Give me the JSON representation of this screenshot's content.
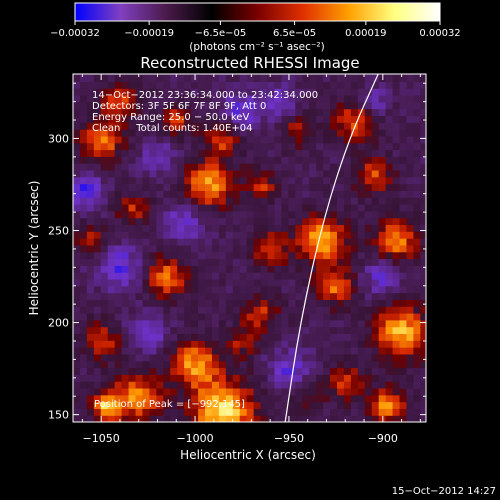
{
  "chart_data": {
    "type": "heatmap",
    "title": "Reconstructed RHESSI Image",
    "xlabel": "Heliocentric X (arcsec)",
    "ylabel": "Heliocentric Y (arcsec)",
    "xlim": [
      -1065,
      -877
    ],
    "ylim": [
      146,
      335
    ],
    "xticks": [
      -1050,
      -1000,
      -950,
      -900
    ],
    "xtick_labels": [
      "−1050",
      "−1000",
      "−950",
      "−900"
    ],
    "yticks": [
      150,
      200,
      250,
      300
    ],
    "ytick_labels": [
      "150",
      "200",
      "250",
      "300"
    ],
    "colorbar": {
      "range": [
        -0.00032,
        0.00032
      ],
      "ticks": [
        -0.00032,
        -0.00019,
        -6.5e-05,
        6.5e-05,
        0.00019,
        0.00032
      ],
      "tick_labels": [
        "−0.00032",
        "−0.00019",
        "−6.5e−05",
        "6.5e−05",
        "0.00019",
        "0.00032"
      ],
      "unit_label": "(photons cm⁻² s⁻¹ asec⁻²)",
      "colors": [
        "#0000ff",
        "#8040c0",
        "#4a1a4a",
        "#000000",
        "#7a0000",
        "#e03000",
        "#ffa000",
        "#ffff80",
        "#ffffff"
      ]
    },
    "info_lines": [
      "14−Oct−2012 23:36:34.000 to 23:42:34.000",
      "Detectors: 3F 5F 6F 7F 8F 9F, Att 0",
      "Energy Range: 25.0 − 50.0 keV",
      "Clean     Total counts: 1.40E+04"
    ],
    "peak_label": "Position of Peak = [−992,145]",
    "peak": [
      -992,
      145
    ],
    "timestamp": "15−Oct−2012 14:27",
    "limb_curve": [
      [
        -952,
        146
      ],
      [
        -944,
        200
      ],
      [
        -932,
        255
      ],
      [
        -918,
        300
      ],
      [
        -902,
        336
      ]
    ],
    "hotspots": [
      {
        "x": -1047,
        "y": 155,
        "amp": 0.00028,
        "r": 6
      },
      {
        "x": -1030,
        "y": 160,
        "amp": 0.00024,
        "r": 9
      },
      {
        "x": -985,
        "y": 152,
        "amp": 0.00032,
        "r": 12
      },
      {
        "x": -1000,
        "y": 178,
        "amp": 0.00025,
        "r": 9
      },
      {
        "x": -1050,
        "y": 190,
        "amp": 0.00018,
        "r": 7
      },
      {
        "x": -1015,
        "y": 225,
        "amp": 0.00022,
        "r": 8
      },
      {
        "x": -1055,
        "y": 245,
        "amp": 0.00014,
        "r": 6
      },
      {
        "x": -1033,
        "y": 262,
        "amp": 0.00016,
        "r": 6
      },
      {
        "x": -1050,
        "y": 298,
        "amp": 0.00022,
        "r": 8
      },
      {
        "x": -1040,
        "y": 320,
        "amp": 0.0002,
        "r": 7
      },
      {
        "x": -1010,
        "y": 310,
        "amp": 0.00017,
        "r": 6
      },
      {
        "x": -993,
        "y": 275,
        "amp": 0.00026,
        "r": 9
      },
      {
        "x": -985,
        "y": 300,
        "amp": 0.00018,
        "r": 7
      },
      {
        "x": -965,
        "y": 275,
        "amp": 0.00016,
        "r": 6
      },
      {
        "x": -960,
        "y": 240,
        "amp": 0.00018,
        "r": 7
      },
      {
        "x": -965,
        "y": 205,
        "amp": 0.00016,
        "r": 7
      },
      {
        "x": -975,
        "y": 190,
        "amp": 0.00013,
        "r": 6
      },
      {
        "x": -945,
        "y": 305,
        "amp": 0.00014,
        "r": 6
      },
      {
        "x": -932,
        "y": 245,
        "amp": 0.00028,
        "r": 9
      },
      {
        "x": -925,
        "y": 220,
        "amp": 0.00022,
        "r": 7
      },
      {
        "x": -915,
        "y": 310,
        "amp": 0.0002,
        "r": 8
      },
      {
        "x": -905,
        "y": 280,
        "amp": 0.00018,
        "r": 7
      },
      {
        "x": -893,
        "y": 245,
        "amp": 0.00025,
        "r": 8
      },
      {
        "x": -890,
        "y": 195,
        "amp": 0.00028,
        "r": 10
      },
      {
        "x": -920,
        "y": 168,
        "amp": 0.00017,
        "r": 7
      },
      {
        "x": -898,
        "y": 155,
        "amp": 0.00024,
        "r": 7
      },
      {
        "x": -940,
        "y": 160,
        "amp": 0.00011,
        "r": 6
      }
    ],
    "coldspots": [
      {
        "x": -1040,
        "y": 230,
        "amp": -0.00016,
        "r": 9
      },
      {
        "x": -1005,
        "y": 255,
        "amp": -0.00014,
        "r": 8
      },
      {
        "x": -1058,
        "y": 272,
        "amp": -0.00018,
        "r": 7
      },
      {
        "x": -975,
        "y": 315,
        "amp": -0.00015,
        "r": 8
      },
      {
        "x": -1025,
        "y": 195,
        "amp": -0.00016,
        "r": 7
      },
      {
        "x": -950,
        "y": 175,
        "amp": -0.00014,
        "r": 8
      },
      {
        "x": -900,
        "y": 225,
        "amp": -0.00015,
        "r": 7
      },
      {
        "x": -905,
        "y": 320,
        "amp": -0.00013,
        "r": 6
      },
      {
        "x": -955,
        "y": 320,
        "amp": -0.00012,
        "r": 7
      },
      {
        "x": -1020,
        "y": 290,
        "amp": -0.00012,
        "r": 7
      }
    ]
  }
}
